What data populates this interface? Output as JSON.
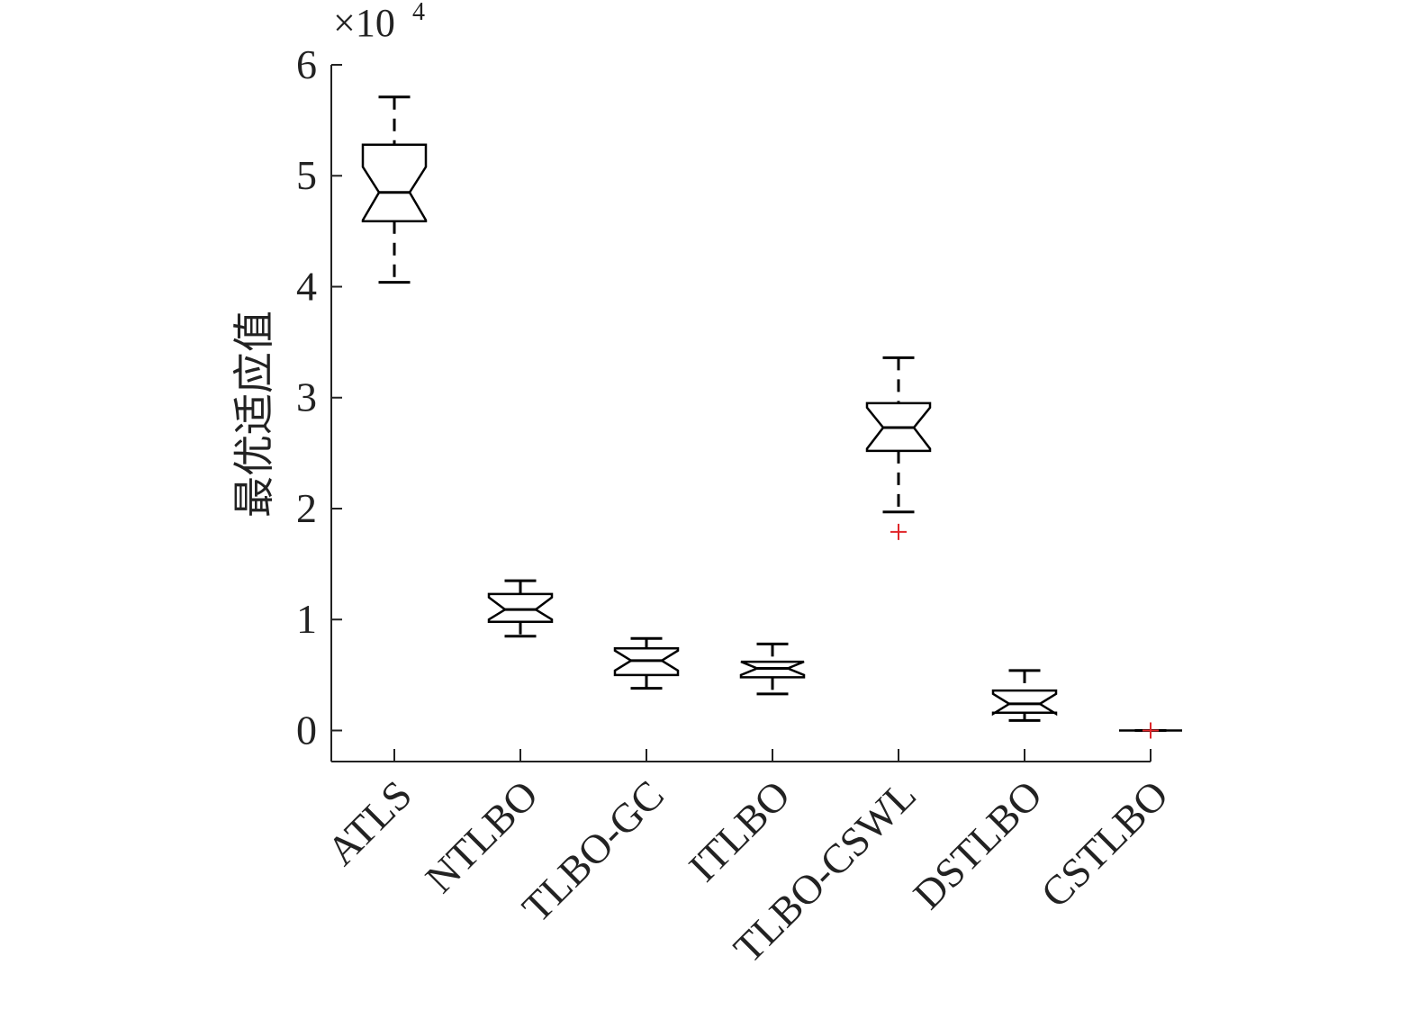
{
  "chart_data": {
    "type": "boxplot",
    "notched": true,
    "y_label": "最优适应值",
    "y_scale_base": "×10",
    "y_scale_exponent": "4",
    "categories": [
      "ATLS",
      "NTLBO",
      "TLBO-GC",
      "ITLBO",
      "TLBO-CSWL",
      "DSTLBO",
      "CSTLBO"
    ],
    "whisker_low": [
      4.04,
      0.85,
      0.38,
      0.33,
      1.97,
      0.09,
      0
    ],
    "q1": [
      4.59,
      0.98,
      0.5,
      0.48,
      2.52,
      0.16,
      0
    ],
    "notch_low": [
      4.6,
      1.0,
      0.54,
      0.5,
      2.54,
      0.15,
      0
    ],
    "median": [
      4.85,
      1.09,
      0.63,
      0.56,
      2.73,
      0.24,
      0
    ],
    "notch_high": [
      5.08,
      1.2,
      0.72,
      0.62,
      2.91,
      0.33,
      0
    ],
    "q3": [
      5.28,
      1.23,
      0.74,
      0.62,
      2.95,
      0.36,
      0
    ],
    "whisker_high": [
      5.71,
      1.35,
      0.83,
      0.78,
      3.36,
      0.54,
      0
    ],
    "outliers": [
      [],
      [],
      [],
      [],
      [
        1.79
      ],
      [],
      [
        0
      ]
    ],
    "box_color": "#000000",
    "outlier_color": "#e0262a",
    "ylim": [
      -0.28,
      6
    ],
    "yticks": [
      0,
      1,
      2,
      3,
      4,
      5,
      6
    ]
  }
}
